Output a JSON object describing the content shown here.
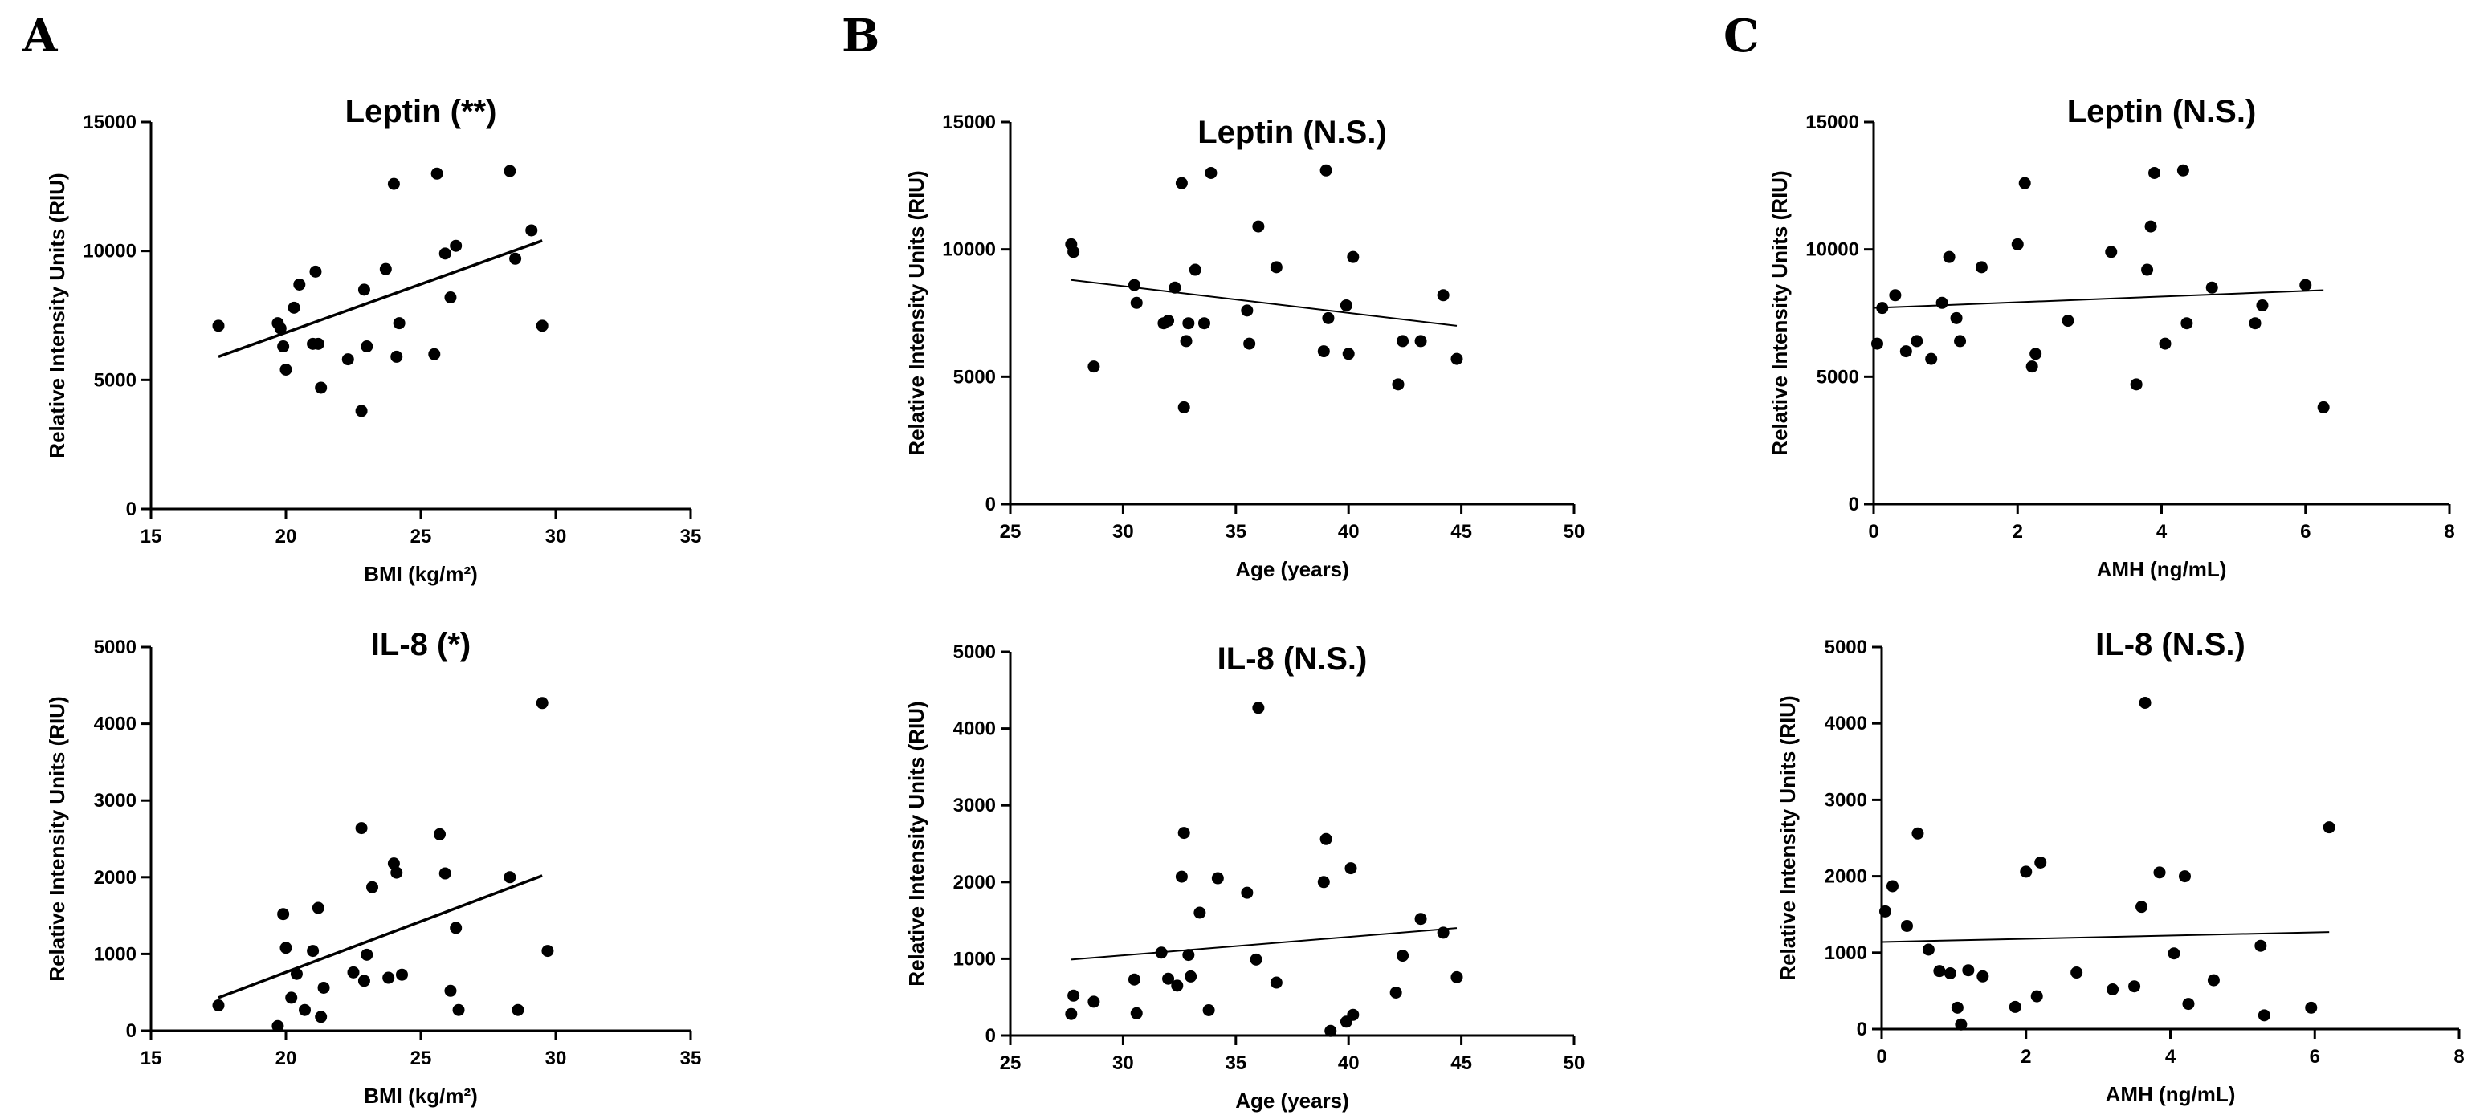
{
  "figure": {
    "panels": [
      {
        "letter": "A"
      },
      {
        "letter": "B"
      },
      {
        "letter": "C"
      }
    ]
  },
  "chart_data": [
    {
      "id": "A1",
      "type": "scatter",
      "title": "Leptin (**)",
      "xlabel": "BMI (kg/m²)",
      "ylabel": "Relative Intensity Units (RIU)",
      "xlim": [
        15,
        35
      ],
      "ylim": [
        0,
        15000
      ],
      "xticks": [
        15,
        20,
        25,
        30,
        35
      ],
      "yticks": [
        0,
        5000,
        10000,
        15000
      ],
      "x": [
        17.5,
        19.7,
        19.8,
        19.9,
        20.0,
        20.3,
        20.5,
        21.0,
        21.1,
        21.2,
        21.3,
        22.3,
        22.8,
        22.9,
        23.0,
        23.7,
        24.0,
        24.1,
        24.2,
        25.5,
        25.6,
        25.9,
        26.1,
        26.3,
        28.3,
        28.5,
        29.1,
        29.5
      ],
      "y": [
        7100,
        7200,
        7000,
        6300,
        5400,
        7800,
        8700,
        6400,
        9200,
        6400,
        4700,
        5800,
        3800,
        8500,
        6300,
        9300,
        12600,
        5900,
        7200,
        6000,
        13000,
        9900,
        8200,
        10200,
        13100,
        9700,
        10800,
        7100
      ],
      "trend": {
        "x": [
          17.5,
          29.5
        ],
        "y": [
          5900,
          10400
        ]
      }
    },
    {
      "id": "B1",
      "type": "scatter",
      "title": "Leptin (N.S.)",
      "xlabel": "Age (years)",
      "ylabel": "Relative Intensity Units (RIU)",
      "xlim": [
        25,
        50
      ],
      "ylim": [
        0,
        15000
      ],
      "xticks": [
        25,
        30,
        35,
        40,
        45,
        50
      ],
      "yticks": [
        0,
        5000,
        10000,
        15000
      ],
      "x": [
        27.7,
        27.8,
        28.7,
        30.5,
        30.6,
        31.8,
        32.0,
        32.3,
        32.6,
        32.7,
        32.8,
        32.9,
        33.2,
        33.6,
        33.9,
        35.5,
        35.6,
        36.0,
        36.8,
        38.9,
        39.0,
        39.1,
        39.9,
        40.0,
        40.2,
        42.2,
        42.4,
        43.2,
        44.2,
        44.8
      ],
      "y": [
        10200,
        9900,
        5400,
        8600,
        7900,
        7100,
        7200,
        8500,
        12600,
        3800,
        6400,
        7100,
        9200,
        7100,
        13000,
        7600,
        6300,
        10900,
        9300,
        6000,
        13100,
        7300,
        7800,
        5900,
        9700,
        4700,
        6400,
        6400,
        8200,
        5700
      ],
      "trend": {
        "x": [
          27.7,
          44.8
        ],
        "y": [
          8800,
          7000
        ]
      }
    },
    {
      "id": "C1",
      "type": "scatter",
      "title": "Leptin (N.S.)",
      "xlabel": "AMH (ng/mL)",
      "ylabel": "Relative Intensity Units (RIU)",
      "xlim": [
        0,
        8
      ],
      "ylim": [
        0,
        15000
      ],
      "xticks": [
        0,
        2,
        4,
        6,
        8
      ],
      "yticks": [
        0,
        5000,
        10000,
        15000
      ],
      "x": [
        0.05,
        0.12,
        0.3,
        0.45,
        0.6,
        0.8,
        0.95,
        1.05,
        1.15,
        1.2,
        1.5,
        2.0,
        2.1,
        2.2,
        2.25,
        2.7,
        3.3,
        3.65,
        3.8,
        3.85,
        3.9,
        4.05,
        4.3,
        4.35,
        4.7,
        5.3,
        5.4,
        6.0,
        6.25
      ],
      "y": [
        6300,
        7700,
        8200,
        6000,
        6400,
        5700,
        7900,
        9700,
        7300,
        6400,
        9300,
        10200,
        12600,
        5400,
        5900,
        7200,
        9900,
        4700,
        9200,
        10900,
        13000,
        6300,
        13100,
        7100,
        8500,
        7100,
        7800,
        8600,
        3800
      ],
      "trend": {
        "x": [
          0,
          6.25
        ],
        "y": [
          7700,
          8400
        ]
      }
    },
    {
      "id": "A2",
      "type": "scatter",
      "title": "IL-8 (*)",
      "xlabel": "BMI (kg/m²)",
      "ylabel": "Relative Intensity Units (RIU)",
      "xlim": [
        15,
        35
      ],
      "ylim": [
        0,
        5000
      ],
      "xticks": [
        15,
        20,
        25,
        30,
        35
      ],
      "yticks": [
        0,
        1000,
        2000,
        3000,
        4000,
        5000
      ],
      "x": [
        17.5,
        19.7,
        19.9,
        20.0,
        20.2,
        20.4,
        20.7,
        21.0,
        21.2,
        21.3,
        21.4,
        22.5,
        22.8,
        22.9,
        23.0,
        23.2,
        23.8,
        24.0,
        24.1,
        24.3,
        25.7,
        25.9,
        26.1,
        26.3,
        26.4,
        28.3,
        28.6,
        29.5,
        29.7
      ],
      "y": [
        330,
        60,
        1520,
        1080,
        430,
        740,
        270,
        1040,
        1600,
        180,
        560,
        760,
        2640,
        650,
        990,
        1870,
        690,
        2180,
        2060,
        730,
        2560,
        2050,
        520,
        1340,
        270,
        2000,
        270,
        4270,
        1040
      ],
      "trend": {
        "x": [
          17.5,
          29.5
        ],
        "y": [
          430,
          2020
        ]
      }
    },
    {
      "id": "B2",
      "type": "scatter",
      "title": "IL-8 (N.S.)",
      "xlabel": "Age (years)",
      "ylabel": "Relative Intensity Units (RIU)",
      "xlim": [
        25,
        50
      ],
      "ylim": [
        0,
        5000
      ],
      "xticks": [
        25,
        30,
        35,
        40,
        45,
        50
      ],
      "yticks": [
        0,
        1000,
        2000,
        3000,
        4000,
        5000
      ],
      "x": [
        27.7,
        27.8,
        28.7,
        30.5,
        30.6,
        31.7,
        32.0,
        32.4,
        32.6,
        32.7,
        32.9,
        33.0,
        33.4,
        33.8,
        34.2,
        35.5,
        35.9,
        36.0,
        36.8,
        38.9,
        39.0,
        39.2,
        39.9,
        40.1,
        40.2,
        42.1,
        42.4,
        43.2,
        44.2,
        44.8
      ],
      "y": [
        280,
        520,
        440,
        730,
        290,
        1080,
        740,
        650,
        2070,
        2640,
        1050,
        770,
        1600,
        330,
        2050,
        1860,
        990,
        4270,
        690,
        2000,
        2560,
        60,
        180,
        2180,
        270,
        560,
        1040,
        1520,
        1340,
        760
      ],
      "trend": {
        "x": [
          27.7,
          44.8
        ],
        "y": [
          990,
          1400
        ]
      }
    },
    {
      "id": "C2",
      "type": "scatter",
      "title": "IL-8 (N.S.)",
      "xlabel": "AMH (ng/mL)",
      "ylabel": "Relative Intensity Units (RIU)",
      "xlim": [
        0,
        8
      ],
      "ylim": [
        0,
        5000
      ],
      "xticks": [
        0,
        2,
        4,
        6,
        8
      ],
      "yticks": [
        0,
        1000,
        2000,
        3000,
        4000,
        5000
      ],
      "x": [
        0.05,
        0.15,
        0.35,
        0.5,
        0.65,
        0.8,
        0.95,
        1.05,
        1.1,
        1.2,
        1.4,
        1.85,
        2.0,
        2.15,
        2.2,
        2.7,
        3.2,
        3.5,
        3.6,
        3.65,
        3.85,
        4.05,
        4.2,
        4.25,
        4.6,
        5.25,
        5.3,
        5.95,
        6.2
      ],
      "y": [
        1540,
        1870,
        1350,
        2560,
        1040,
        760,
        730,
        280,
        60,
        770,
        690,
        290,
        2060,
        430,
        2180,
        740,
        520,
        560,
        1600,
        4270,
        2050,
        990,
        2000,
        330,
        640,
        1090,
        180,
        280,
        2640
      ],
      "trend": {
        "x": [
          0,
          6.2
        ],
        "y": [
          1140,
          1270
        ]
      }
    }
  ]
}
